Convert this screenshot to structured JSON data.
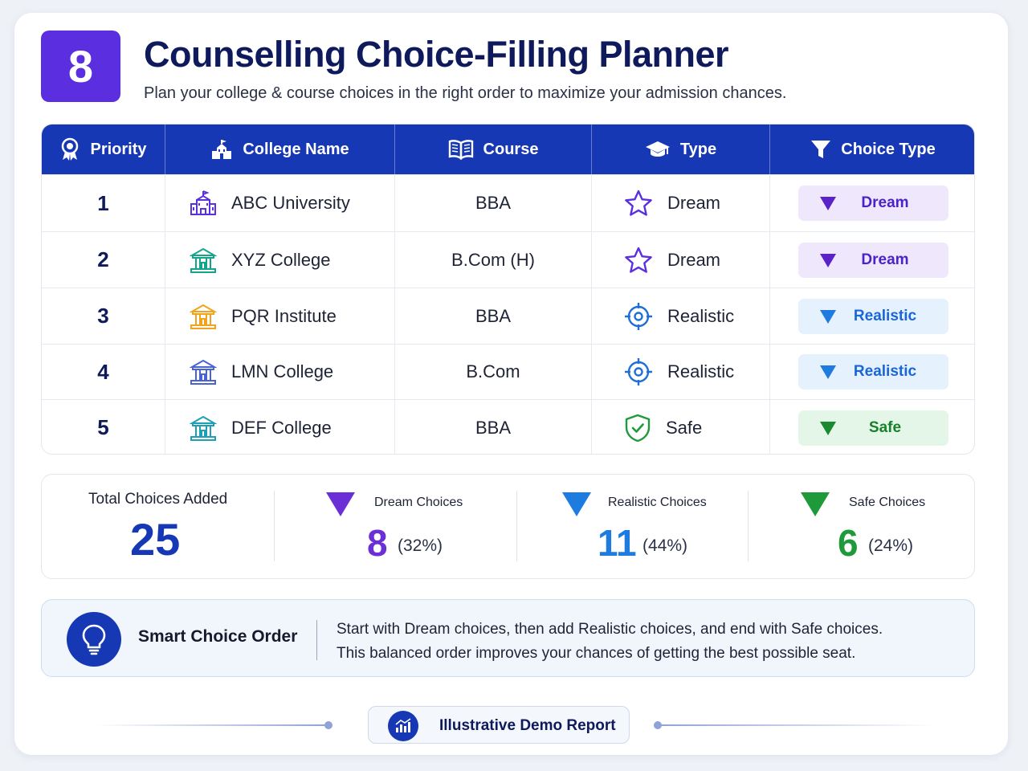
{
  "header": {
    "badge": "8",
    "title": "Counselling Choice-Filling Planner",
    "subtitle": "Plan your college & course choices in the right order to maximize your admission chances."
  },
  "table": {
    "columns": [
      {
        "label": "Priority",
        "icon": "award-ribbon-icon"
      },
      {
        "label": "College Name",
        "icon": "building-icon"
      },
      {
        "label": "Course",
        "icon": "open-book-icon"
      },
      {
        "label": "Type",
        "icon": "graduation-cap-icon"
      },
      {
        "label": "Choice Type",
        "icon": "funnel-icon"
      }
    ],
    "rows": [
      {
        "priority": "1",
        "college": "ABC University",
        "college_icon_color": "#5b2fe0",
        "course": "BBA",
        "type": "Dream",
        "type_icon": "star-icon",
        "choice": "Dream"
      },
      {
        "priority": "2",
        "college": "XYZ College",
        "college_icon_color": "#13a58c",
        "course": "B.Com (H)",
        "type": "Dream",
        "type_icon": "star-icon",
        "choice": "Dream"
      },
      {
        "priority": "3",
        "college": "PQR Institute",
        "college_icon_color": "#f3a21b",
        "course": "BBA",
        "type": "Realistic",
        "type_icon": "target-icon",
        "choice": "Realistic"
      },
      {
        "priority": "4",
        "college": "LMN College",
        "college_icon_color": "#4a63d3",
        "course": "B.Com",
        "type": "Realistic",
        "type_icon": "target-icon",
        "choice": "Realistic"
      },
      {
        "priority": "5",
        "college": "DEF College",
        "college_icon_color": "#1d9fb8",
        "course": "BBA",
        "type": "Safe",
        "type_icon": "shield-check-icon",
        "choice": "Safe"
      }
    ]
  },
  "stats": {
    "total_label": "Total Choices Added",
    "total_value": "25",
    "dream": {
      "label": "Dream Choices",
      "value": "8",
      "pct": "(32%)",
      "color": "#6a2fd6"
    },
    "realistic": {
      "label": "Realistic Choices",
      "value": "11",
      "pct": "(44%)",
      "color": "#1e7be0"
    },
    "safe": {
      "label": "Safe Choices",
      "value": "6",
      "pct": "(24%)",
      "color": "#1f9a3a"
    }
  },
  "tip": {
    "title": "Smart Choice Order",
    "line1": "Start with Dream choices, then add Realistic choices, and end with Safe choices.",
    "line2": "This balanced order improves your chances of getting the best possible seat."
  },
  "footer": {
    "badge_label": "Illustrative Demo Report"
  },
  "colors": {
    "brand_purple": "#5b2fe0",
    "header_blue": "#1638b5",
    "title_navy": "#0e1a5c"
  }
}
